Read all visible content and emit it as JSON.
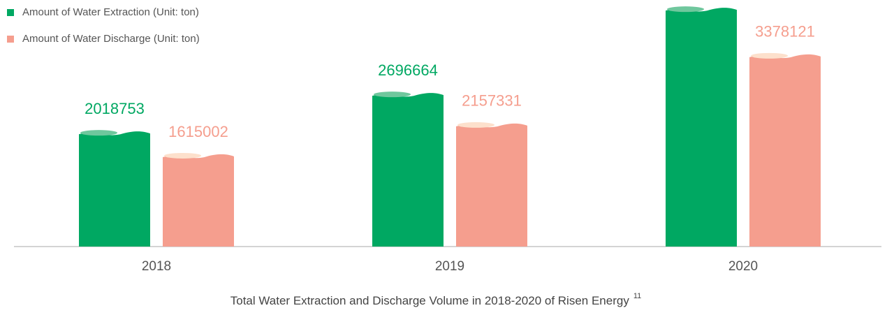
{
  "chart_data": {
    "type": "bar",
    "title": "Total Water Extraction and Discharge Volume in 2018-2020 of Risen Energy",
    "footnote": "11",
    "categories": [
      "2018",
      "2019",
      "2020"
    ],
    "series": [
      {
        "name": "Amount of Water Extraction (Unit: ton)",
        "color": "#00a862",
        "highlight": "#6fc79d",
        "values": [
          2018753,
          2696664,
          4200000
        ],
        "value_labels": [
          "2018753",
          "2696664",
          null
        ]
      },
      {
        "name": "Amount of Water Discharge (Unit: ton)",
        "color": "#f59e8e",
        "highlight": "#fde0cc",
        "values": [
          1615002,
          2157331,
          3378121
        ],
        "value_labels": [
          "1615002",
          "2157331",
          "3378121"
        ]
      }
    ],
    "ylim": [
      0,
      4350000
    ]
  }
}
